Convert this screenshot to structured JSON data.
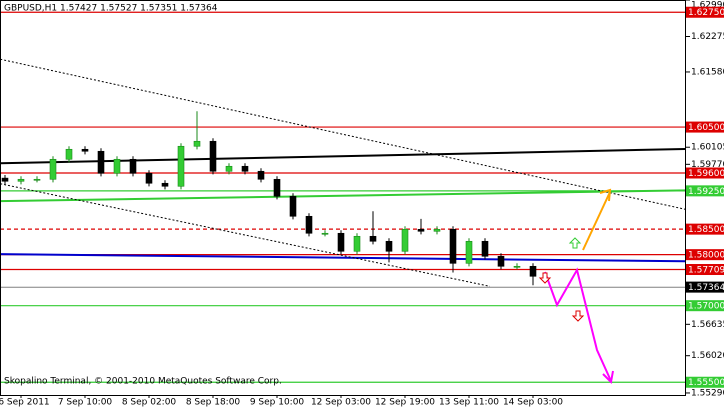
{
  "chart_data": {
    "type": "candlestick",
    "title": "GBPUSD,H1  1.57427 1.57527 1.57351 1.57364",
    "footer": "Skopalino Terminal, © 2001-2010 MetaQuotes Software Corp.",
    "categories": [
      null,
      "6 Sep 2011",
      null,
      null,
      null,
      "7 Sep 10:00",
      null,
      null,
      null,
      "8 Sep 02:00",
      null,
      null,
      null,
      "8 Sep 18:00",
      null,
      null,
      null,
      "9 Sep 10:00",
      null,
      null,
      null,
      "12 Sep 03:00",
      null,
      null,
      null,
      "12 Sep 19:00",
      null,
      null,
      null,
      "13 Sep 11:00",
      null,
      null,
      null,
      "14 Sep 03:00"
    ],
    "open": [
      1.595,
      1.59438,
      1.59477,
      1.59477,
      1.59869,
      1.60065,
      1.60026,
      1.59595,
      1.59869,
      1.59595,
      1.59399,
      1.5934,
      1.60124,
      1.60222,
      1.59634,
      1.59732,
      1.59634,
      1.59477,
      1.59144,
      1.58752,
      1.58419,
      1.58419,
      1.58066,
      1.5836,
      1.58262,
      1.58066,
      1.58497,
      1.58458,
      1.58497,
      1.5783,
      1.58262,
      1.57968,
      1.57772,
      1.57772
    ],
    "high": [
      1.5956,
      1.59537,
      1.59537,
      1.59929,
      1.60125,
      1.60125,
      1.60086,
      1.59929,
      1.59929,
      1.59655,
      1.59459,
      1.60184,
      1.6081,
      1.60282,
      1.59792,
      1.59792,
      1.59694,
      1.59537,
      1.59204,
      1.58812,
      1.58479,
      1.58479,
      1.5842,
      1.5885,
      1.58322,
      1.58557,
      1.587,
      1.58557,
      1.58557,
      1.58322,
      1.58322,
      1.58028,
      1.57832,
      1.57832
    ],
    "low": [
      1.59378,
      1.59378,
      1.59417,
      1.59417,
      1.59809,
      1.59966,
      1.59535,
      1.59535,
      1.59535,
      1.59339,
      1.5928,
      1.5928,
      1.60064,
      1.59574,
      1.59574,
      1.59574,
      1.59417,
      1.59084,
      1.58692,
      1.58359,
      1.58359,
      1.58006,
      1.58006,
      1.58202,
      1.5785,
      1.58006,
      1.58398,
      1.58398,
      1.5765,
      1.5777,
      1.57908,
      1.57712,
      1.57712,
      1.574
    ],
    "close": [
      1.59438,
      1.59477,
      1.59477,
      1.59869,
      1.60065,
      1.60026,
      1.59595,
      1.59869,
      1.59595,
      1.59399,
      1.5934,
      1.60124,
      1.60222,
      1.59634,
      1.59732,
      1.59634,
      1.59477,
      1.59144,
      1.58752,
      1.58419,
      1.58419,
      1.58066,
      1.5836,
      1.58262,
      1.58066,
      1.58497,
      1.58458,
      1.58497,
      1.5783,
      1.58262,
      1.57968,
      1.57772,
      1.57772,
      1.57576
    ],
    "up_color": "#33cc33",
    "down_color": "#000000",
    "ylim": [
      1.5525,
      1.6299
    ],
    "yticks": [
      {
        "value": 1.6299,
        "label": "1.62990"
      },
      1.62275,
      {
        "value": 1.6158,
        "label": "1.61580"
      },
      1.60105,
      {
        "value": 1.5977,
        "label": "1.59770"
      },
      1.56635,
      {
        "value": 1.5602,
        "label": "1.56020"
      },
      {
        "value": 1.5529,
        "label": "1.55290"
      }
    ],
    "levels": [
      {
        "value": 1.6275,
        "label": "1.62750",
        "color": "#dd0000",
        "style": "solid"
      },
      {
        "value": 1.605,
        "label": "1.60500",
        "color": "#dd0000",
        "style": "solid"
      },
      {
        "value": 1.596,
        "label": "1.59600",
        "color": "#dd0000",
        "style": "solid"
      },
      {
        "value": 1.5925,
        "label": "1.59250",
        "color": "#33cc33",
        "style": "solid"
      },
      {
        "value": 1.585,
        "label": "1.58500",
        "color": "#dd0000",
        "style": "dashed"
      },
      {
        "value": 1.58,
        "label": "1.58000",
        "color": "#dd0000",
        "style": "solid"
      },
      {
        "value": 1.57709,
        "label": "1.57709",
        "color": "#dd0000",
        "style": "solid"
      },
      {
        "value": 1.57364,
        "label": "1.57364",
        "color": "#000000",
        "style": "thin"
      },
      {
        "value": 1.57,
        "label": "1.57000",
        "color": "#33cc33",
        "style": "solid"
      },
      {
        "value": 1.555,
        "label": "1.55500",
        "color": "#33cc33",
        "style": "solid"
      }
    ],
    "trendlines": [
      {
        "x": [
          -0.3,
          42.5
        ],
        "y": [
          1.5979,
          1.6007
        ],
        "color": "#000000",
        "style": "solid"
      },
      {
        "x": [
          -0.3,
          42.5
        ],
        "y": [
          1.5801,
          1.5787
        ],
        "color": "#0000cc",
        "style": "solid"
      },
      {
        "x": [
          -0.3,
          42.5
        ],
        "y": [
          1.5905,
          1.5926
        ],
        "color": "#33cc33",
        "style": "solid"
      },
      {
        "x": [
          -0.3,
          42.5
        ],
        "y": [
          1.6183,
          1.5889
        ],
        "color": "#000000",
        "style": "dotted"
      },
      {
        "x": [
          -0.3,
          30.3
        ],
        "y": [
          1.5939,
          1.5738
        ],
        "color": "#000000",
        "style": "dotted"
      }
    ]
  }
}
